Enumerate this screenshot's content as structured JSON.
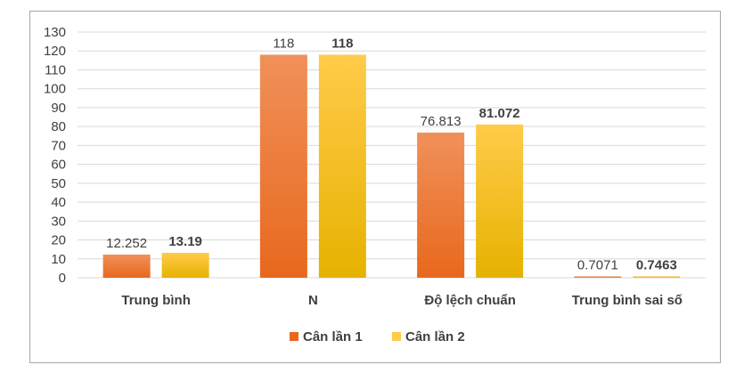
{
  "colors": {
    "series1_top": "#f0915a",
    "series1_bottom": "#e8681d",
    "series2_top": "#ffcb4a",
    "series2_bottom": "#e6b200",
    "grid": "#d9d9d9",
    "text": "#404040"
  },
  "chart_data": {
    "type": "bar",
    "categories": [
      "Trung bình",
      "N",
      "Độ lệch chuẩn",
      "Trung bình sai số"
    ],
    "series": [
      {
        "name": "Cân lần 1",
        "values": [
          12.252,
          118,
          76.813,
          0.7071
        ],
        "labels": [
          "12.252",
          "118",
          "76.813",
          "0.7071"
        ]
      },
      {
        "name": "Cân lần 2",
        "values": [
          13.19,
          118,
          81.072,
          0.7463
        ],
        "labels": [
          "13.19",
          "118",
          "81.072",
          "0.7463"
        ]
      }
    ],
    "ylim": [
      0,
      130
    ],
    "yticks": [
      0,
      10,
      20,
      30,
      40,
      50,
      60,
      70,
      80,
      90,
      100,
      110,
      120,
      130
    ],
    "grid": true,
    "legend": "bottom"
  }
}
